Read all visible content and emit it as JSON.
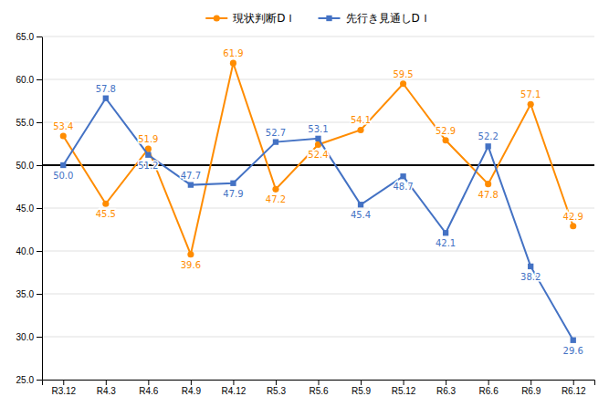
{
  "chart_data": {
    "type": "line",
    "categories": [
      "R3.12",
      "R4.3",
      "R4.6",
      "R4.9",
      "R4.12",
      "R5.3",
      "R5.6",
      "R5.9",
      "R5.12",
      "R6.3",
      "R6.6",
      "R6.9",
      "R6.12"
    ],
    "series": [
      {
        "name": "現状判断DＩ",
        "color": "#FF8C00",
        "marker": "circle",
        "values": [
          53.4,
          45.5,
          51.9,
          39.6,
          61.9,
          47.2,
          52.4,
          54.1,
          59.5,
          52.9,
          47.8,
          57.1,
          42.9
        ]
      },
      {
        "name": "先行き見通しDＩ",
        "color": "#4472C4",
        "marker": "square",
        "values": [
          50.0,
          57.8,
          51.2,
          47.7,
          47.9,
          52.7,
          53.1,
          45.4,
          48.7,
          42.1,
          52.2,
          38.2,
          29.6
        ],
        "value_labels": [
          "50.0",
          "57.8",
          "51.2",
          "47.7",
          "47.9",
          "52.7",
          "53.1",
          "45.4",
          "48.7",
          "42.1",
          "52.2",
          "38.2",
          "29.6"
        ]
      }
    ],
    "reference_line": 50.0,
    "ylim": [
      25.0,
      65.0
    ],
    "yticks": [
      {
        "value": 25,
        "label": "25.0"
      },
      {
        "value": 30,
        "label": "30.0"
      },
      {
        "value": 35,
        "label": "35.0"
      },
      {
        "value": 40,
        "label": "40.0"
      },
      {
        "value": 45,
        "label": "45.0"
      },
      {
        "value": 50,
        "label": "50.0"
      },
      {
        "value": 55,
        "label": "55.0"
      },
      {
        "value": 60,
        "label": "60.0"
      },
      {
        "value": 65,
        "label": "65.0"
      }
    ],
    "grid": true,
    "legend": "top",
    "data_labels": true
  }
}
